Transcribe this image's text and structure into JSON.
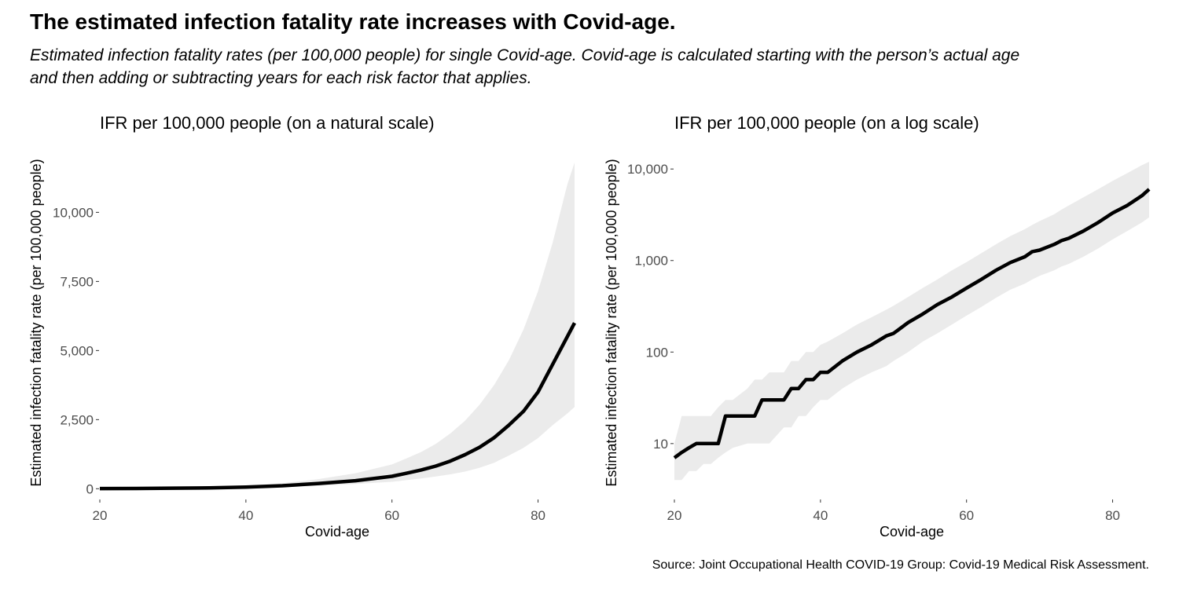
{
  "title": "The estimated infection fatality rate increases with Covid-age.",
  "subtitle": "Estimated infection fatality rates (per 100,000 people) for single Covid-age. Covid-age is calculated starting with the person’s actual age and then adding or subtracting years for each risk factor that applies.",
  "source": "Source: Joint Occupational Health COVID-19 Group: Covid-19 Medical Risk Assessment.",
  "colors": {
    "line": "#000000",
    "band": "#ebebeb",
    "tick_text": "#4d4d4d",
    "tick_mark": "#333333"
  },
  "chart_data": [
    {
      "type": "line",
      "title": "IFR per 100,000 people (on a natural scale)",
      "xlabel": "Covid-age",
      "ylabel": "Estimated infection fatality rate (per 100,000 people)",
      "x_ticks": [
        20,
        40,
        60,
        80
      ],
      "x_tick_labels": [
        "20",
        "40",
        "60",
        "80"
      ],
      "y_ticks": [
        0,
        2500,
        5000,
        7500,
        10000
      ],
      "y_tick_labels": [
        "0",
        "2,500",
        "5,000",
        "7,500",
        "10,000"
      ],
      "xlim": [
        20,
        85
      ],
      "ylim": [
        -360,
        12000
      ],
      "y_scale": "linear",
      "grid": false,
      "series": [
        {
          "x": [
            20,
            25,
            30,
            35,
            40,
            45,
            50,
            55,
            60,
            62,
            64,
            66,
            68,
            70,
            72,
            74,
            76,
            78,
            80,
            82,
            84,
            85
          ],
          "y": [
            7,
            10,
            20,
            30,
            60,
            110,
            190,
            290,
            450,
            560,
            680,
            820,
            1000,
            1230,
            1500,
            1850,
            2300,
            2800,
            3500,
            4500,
            5500,
            6000
          ],
          "lower": [
            3,
            5,
            10,
            20,
            30,
            60,
            110,
            170,
            250,
            310,
            370,
            440,
            520,
            620,
            760,
            940,
            1200,
            1480,
            1830,
            2300,
            2720,
            2960
          ],
          "upper": [
            20,
            25,
            40,
            60,
            110,
            200,
            350,
            560,
            880,
            1100,
            1330,
            1620,
            2000,
            2460,
            3040,
            3760,
            4650,
            5760,
            7150,
            8900,
            11000,
            11800
          ]
        }
      ]
    },
    {
      "type": "line",
      "title": "IFR per 100,000 people (on a log scale)",
      "xlabel": "Covid-age",
      "ylabel": "Estimated infection fatality rate (per 100,000 people)",
      "x_ticks": [
        20,
        40,
        60,
        80
      ],
      "x_tick_labels": [
        "20",
        "40",
        "60",
        "80"
      ],
      "y_ticks": [
        10,
        100,
        1000,
        10000
      ],
      "y_tick_labels": [
        "10",
        "100",
        "1,000",
        "10,000"
      ],
      "xlim": [
        20,
        85
      ],
      "ylim": [
        2.5,
        13500
      ],
      "y_scale": "log",
      "grid": false,
      "series": [
        {
          "x": [
            20,
            21,
            22,
            23,
            24,
            25,
            26,
            27,
            28,
            30,
            31,
            32,
            33,
            35,
            36,
            37,
            38,
            39,
            40,
            41,
            43,
            45,
            47,
            49,
            50,
            52,
            54,
            56,
            58,
            60,
            62,
            64,
            66,
            68,
            69,
            70,
            72,
            73,
            74,
            76,
            78,
            80,
            82,
            84,
            85
          ],
          "y": [
            7,
            8,
            9,
            10,
            10,
            10,
            10,
            20,
            20,
            20,
            20,
            30,
            30,
            30,
            40,
            40,
            50,
            50,
            60,
            60,
            80,
            100,
            120,
            150,
            160,
            210,
            260,
            330,
            400,
            500,
            620,
            780,
            950,
            1100,
            1250,
            1300,
            1500,
            1650,
            1750,
            2100,
            2600,
            3300,
            4000,
            5100,
            6000
          ],
          "lower": [
            4,
            4,
            5,
            5,
            6,
            6,
            7,
            8,
            9,
            10,
            10,
            10,
            10,
            15,
            15,
            20,
            20,
            25,
            30,
            30,
            40,
            50,
            60,
            70,
            80,
            100,
            130,
            160,
            200,
            250,
            310,
            390,
            480,
            560,
            620,
            680,
            780,
            860,
            920,
            1100,
            1350,
            1700,
            2100,
            2600,
            2960
          ],
          "upper": [
            10,
            20,
            20,
            20,
            20,
            20,
            25,
            30,
            30,
            40,
            50,
            50,
            60,
            60,
            80,
            80,
            100,
            100,
            120,
            130,
            160,
            200,
            240,
            290,
            320,
            400,
            500,
            620,
            780,
            960,
            1200,
            1500,
            1850,
            2200,
            2450,
            2700,
            3200,
            3600,
            4000,
            4900,
            6000,
            7400,
            9000,
            11000,
            12000
          ]
        }
      ]
    }
  ]
}
